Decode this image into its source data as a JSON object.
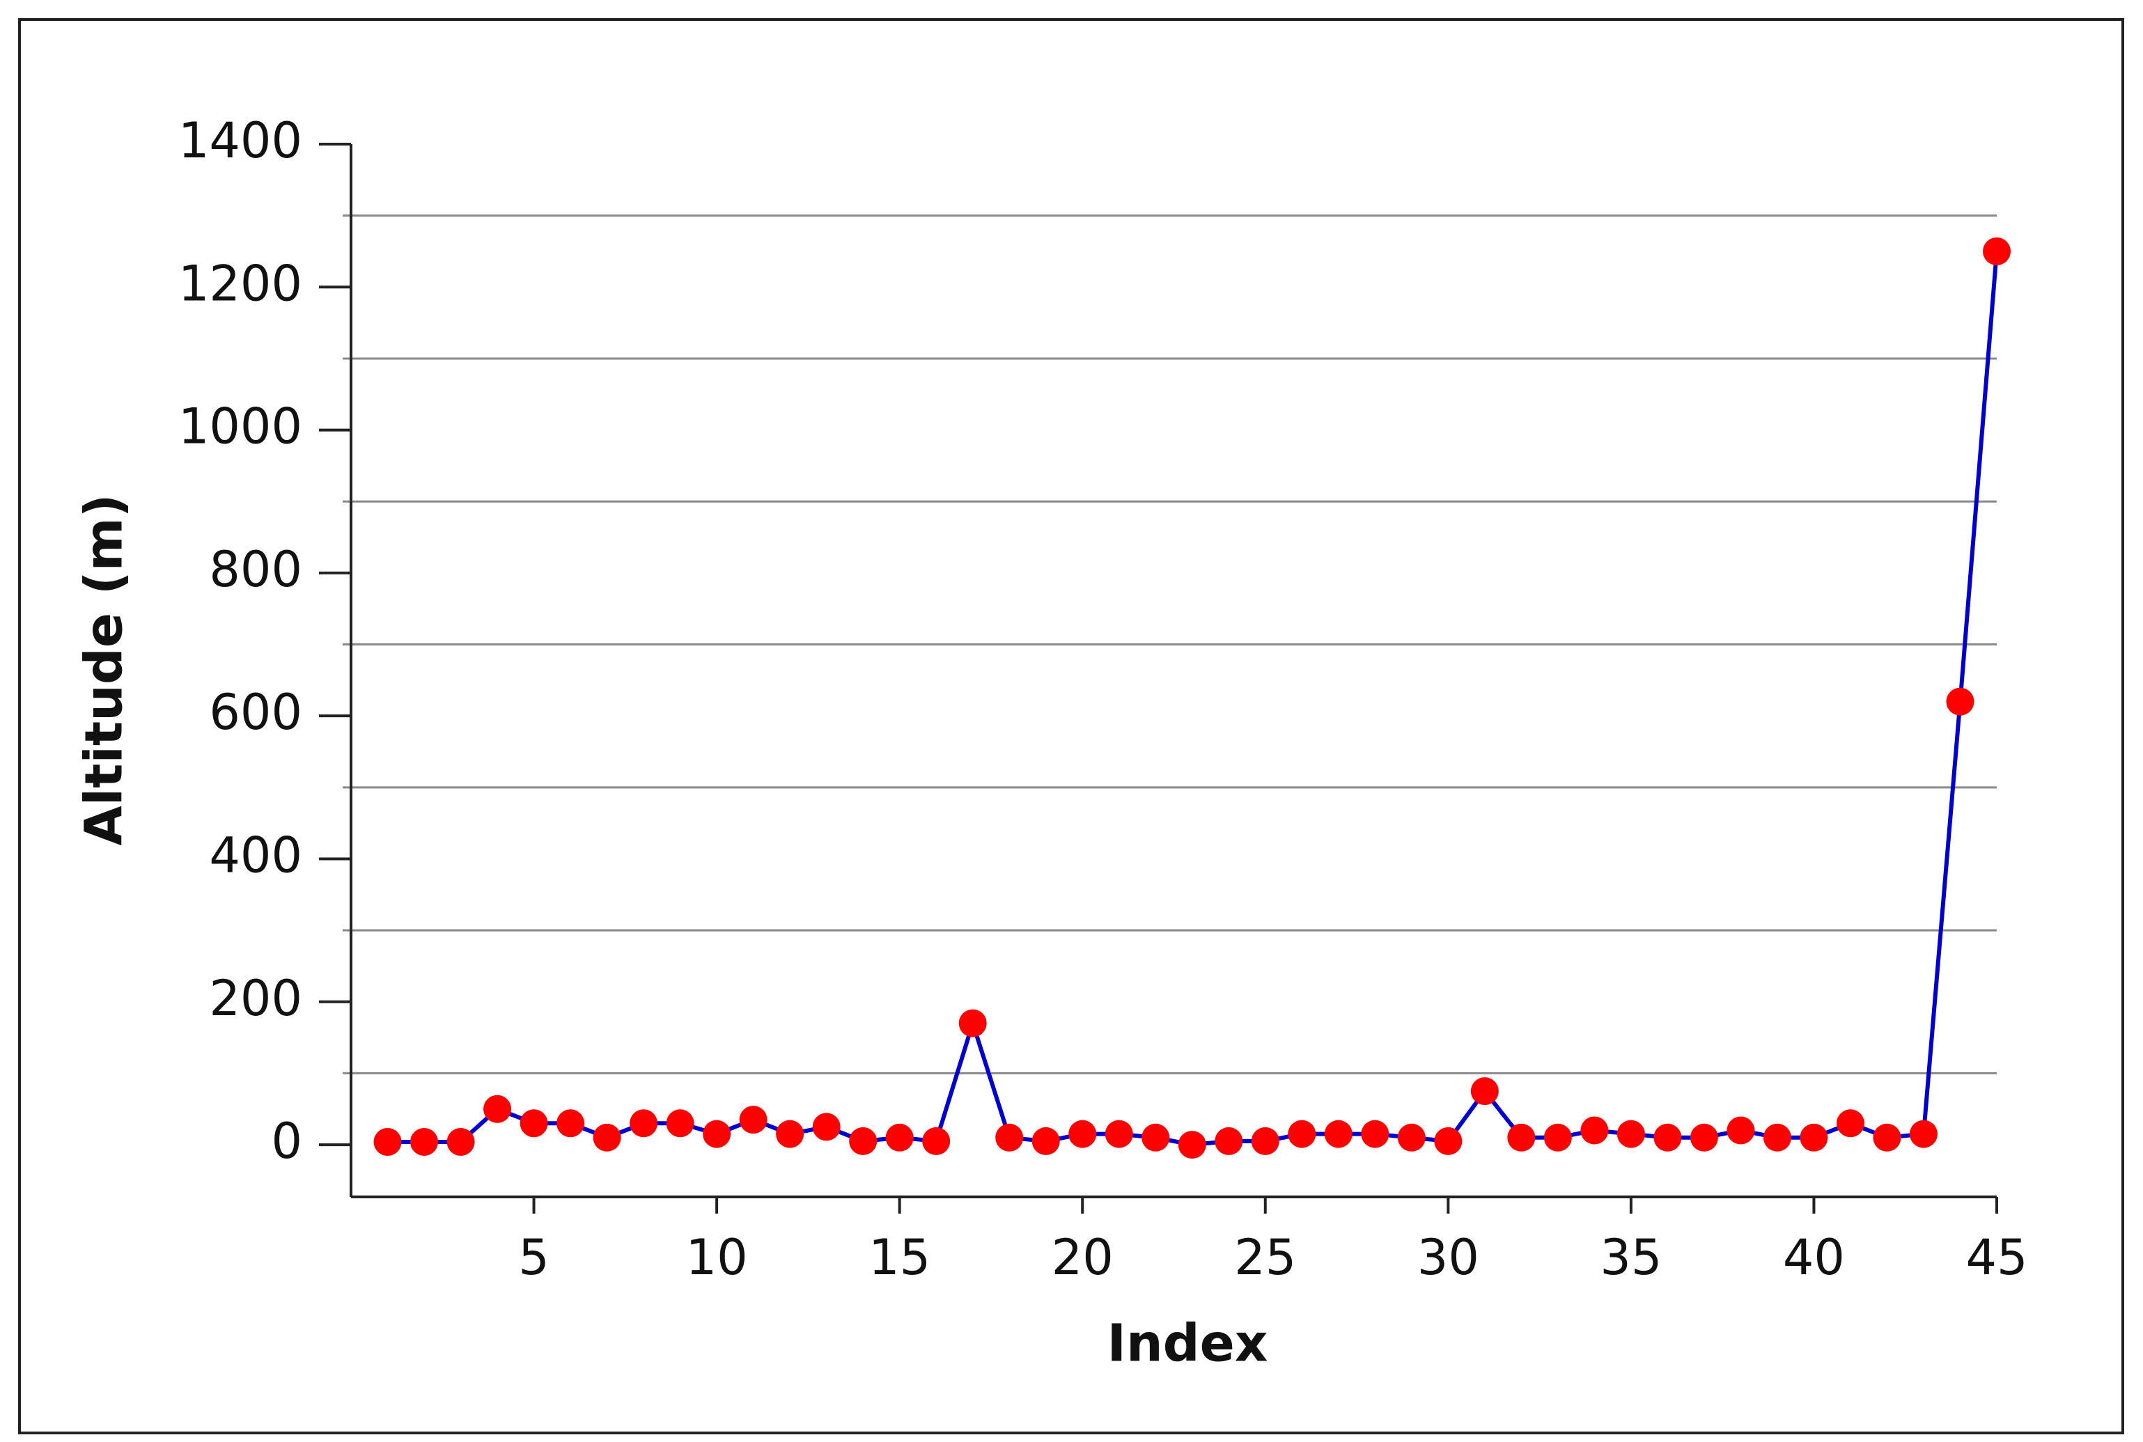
{
  "chart_data": {
    "type": "line",
    "x_label": "Index",
    "y_label": "Altitude (m)",
    "x": [
      1,
      2,
      3,
      4,
      5,
      6,
      7,
      8,
      9,
      10,
      11,
      12,
      13,
      14,
      15,
      16,
      17,
      18,
      19,
      20,
      21,
      22,
      23,
      24,
      25,
      26,
      27,
      28,
      29,
      30,
      31,
      32,
      33,
      34,
      35,
      36,
      37,
      38,
      39,
      40,
      41,
      42,
      43,
      44,
      45
    ],
    "series": [
      {
        "line_color": "#0000cc",
        "marker_color": "#ff0000",
        "values": [
          4,
          4,
          4,
          50,
          30,
          30,
          10,
          30,
          30,
          15,
          35,
          15,
          25,
          5,
          10,
          5,
          170,
          10,
          5,
          15,
          15,
          10,
          0,
          5,
          5,
          15,
          15,
          15,
          10,
          5,
          75,
          10,
          10,
          20,
          15,
          10,
          10,
          20,
          10,
          10,
          30,
          10,
          15,
          620,
          1250
        ]
      }
    ],
    "xlim": [
      0,
      45
    ],
    "xticks": [
      5,
      10,
      15,
      20,
      25,
      30,
      35,
      40,
      45
    ],
    "ylim": [
      -73,
      1400
    ],
    "yticks": [
      0,
      200,
      400,
      600,
      800,
      1000,
      1200,
      1400
    ],
    "y_grid_lines": [
      100,
      300,
      500,
      700,
      900,
      1100,
      1300
    ],
    "grid_color": "#888888"
  }
}
